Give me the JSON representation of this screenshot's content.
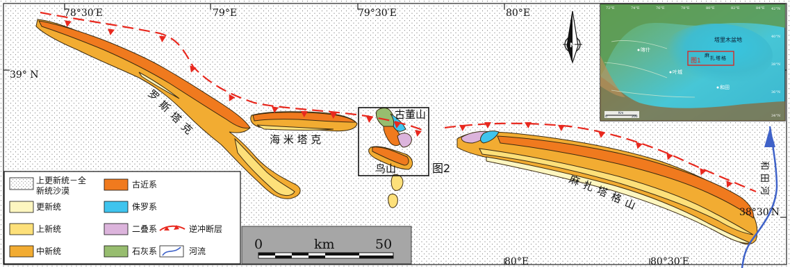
{
  "coordinates": {
    "top": [
      "78°30′E",
      "79°E",
      "79°30′E",
      "80°E"
    ],
    "left": "39° N",
    "right": "38°30′N",
    "bottom": [
      "80°E",
      "80°30′E"
    ]
  },
  "labels": {
    "luosi": [
      "罗",
      "斯",
      "塔",
      "克"
    ],
    "haimi": "海 米 塔 克",
    "gudong": "古董山",
    "niao": "鸟山",
    "fig2": "图2",
    "mazha": [
      "麻",
      "扎",
      "塔",
      "格",
      "山"
    ],
    "river": [
      "和",
      "田",
      "河"
    ]
  },
  "inset": {
    "basin": "塔里木盆地",
    "fig1": "图1",
    "target": [
      "麻",
      "扎",
      "塔",
      "格"
    ],
    "ticks_top": [
      "72°E",
      "74°E",
      "76°E",
      "78°E",
      "80°E",
      "82°E",
      "84°E"
    ],
    "ticks_right": [
      "42°N",
      "40°N",
      "38°N",
      "36°N",
      "34°N"
    ],
    "scale": "Km",
    "scale_vals": [
      "0",
      "200"
    ],
    "cities": [
      "喀什",
      "叶城",
      "和田"
    ]
  },
  "legend": [
    {
      "label": "上更新统－全",
      "label2": "新统沙漠",
      "color": "#ffffff",
      "pattern": "dots"
    },
    {
      "label": "古近系",
      "color": "#f07a1e"
    },
    {
      "label": "更新统",
      "color": "#fdf6c0"
    },
    {
      "label": "侏罗系",
      "color": "#3fc4ee"
    },
    {
      "label": "上新统",
      "color": "#fde07a"
    },
    {
      "label": "二叠系",
      "color": "#dcb4dc"
    },
    {
      "label": "逆冲断层",
      "type": "fault"
    },
    {
      "label": "中新统",
      "color": "#f2ac32"
    },
    {
      "label": "石灰系",
      "color": "#97bd6f"
    },
    {
      "label": "河流",
      "type": "river"
    }
  ],
  "scale_bar": {
    "left": "0",
    "unit": "km",
    "right": "50"
  },
  "north_arrow": "N",
  "colors": {
    "paleogene": "#f07a1e",
    "jurassic": "#3fc4ee",
    "permian": "#dcb4dc",
    "carboniferous": "#97bd6f",
    "pleistocene": "#fdf6c0",
    "pliocene": "#fde07a",
    "miocene": "#f2ac32",
    "fault": "#e8281e",
    "river": "#3f62c8"
  }
}
